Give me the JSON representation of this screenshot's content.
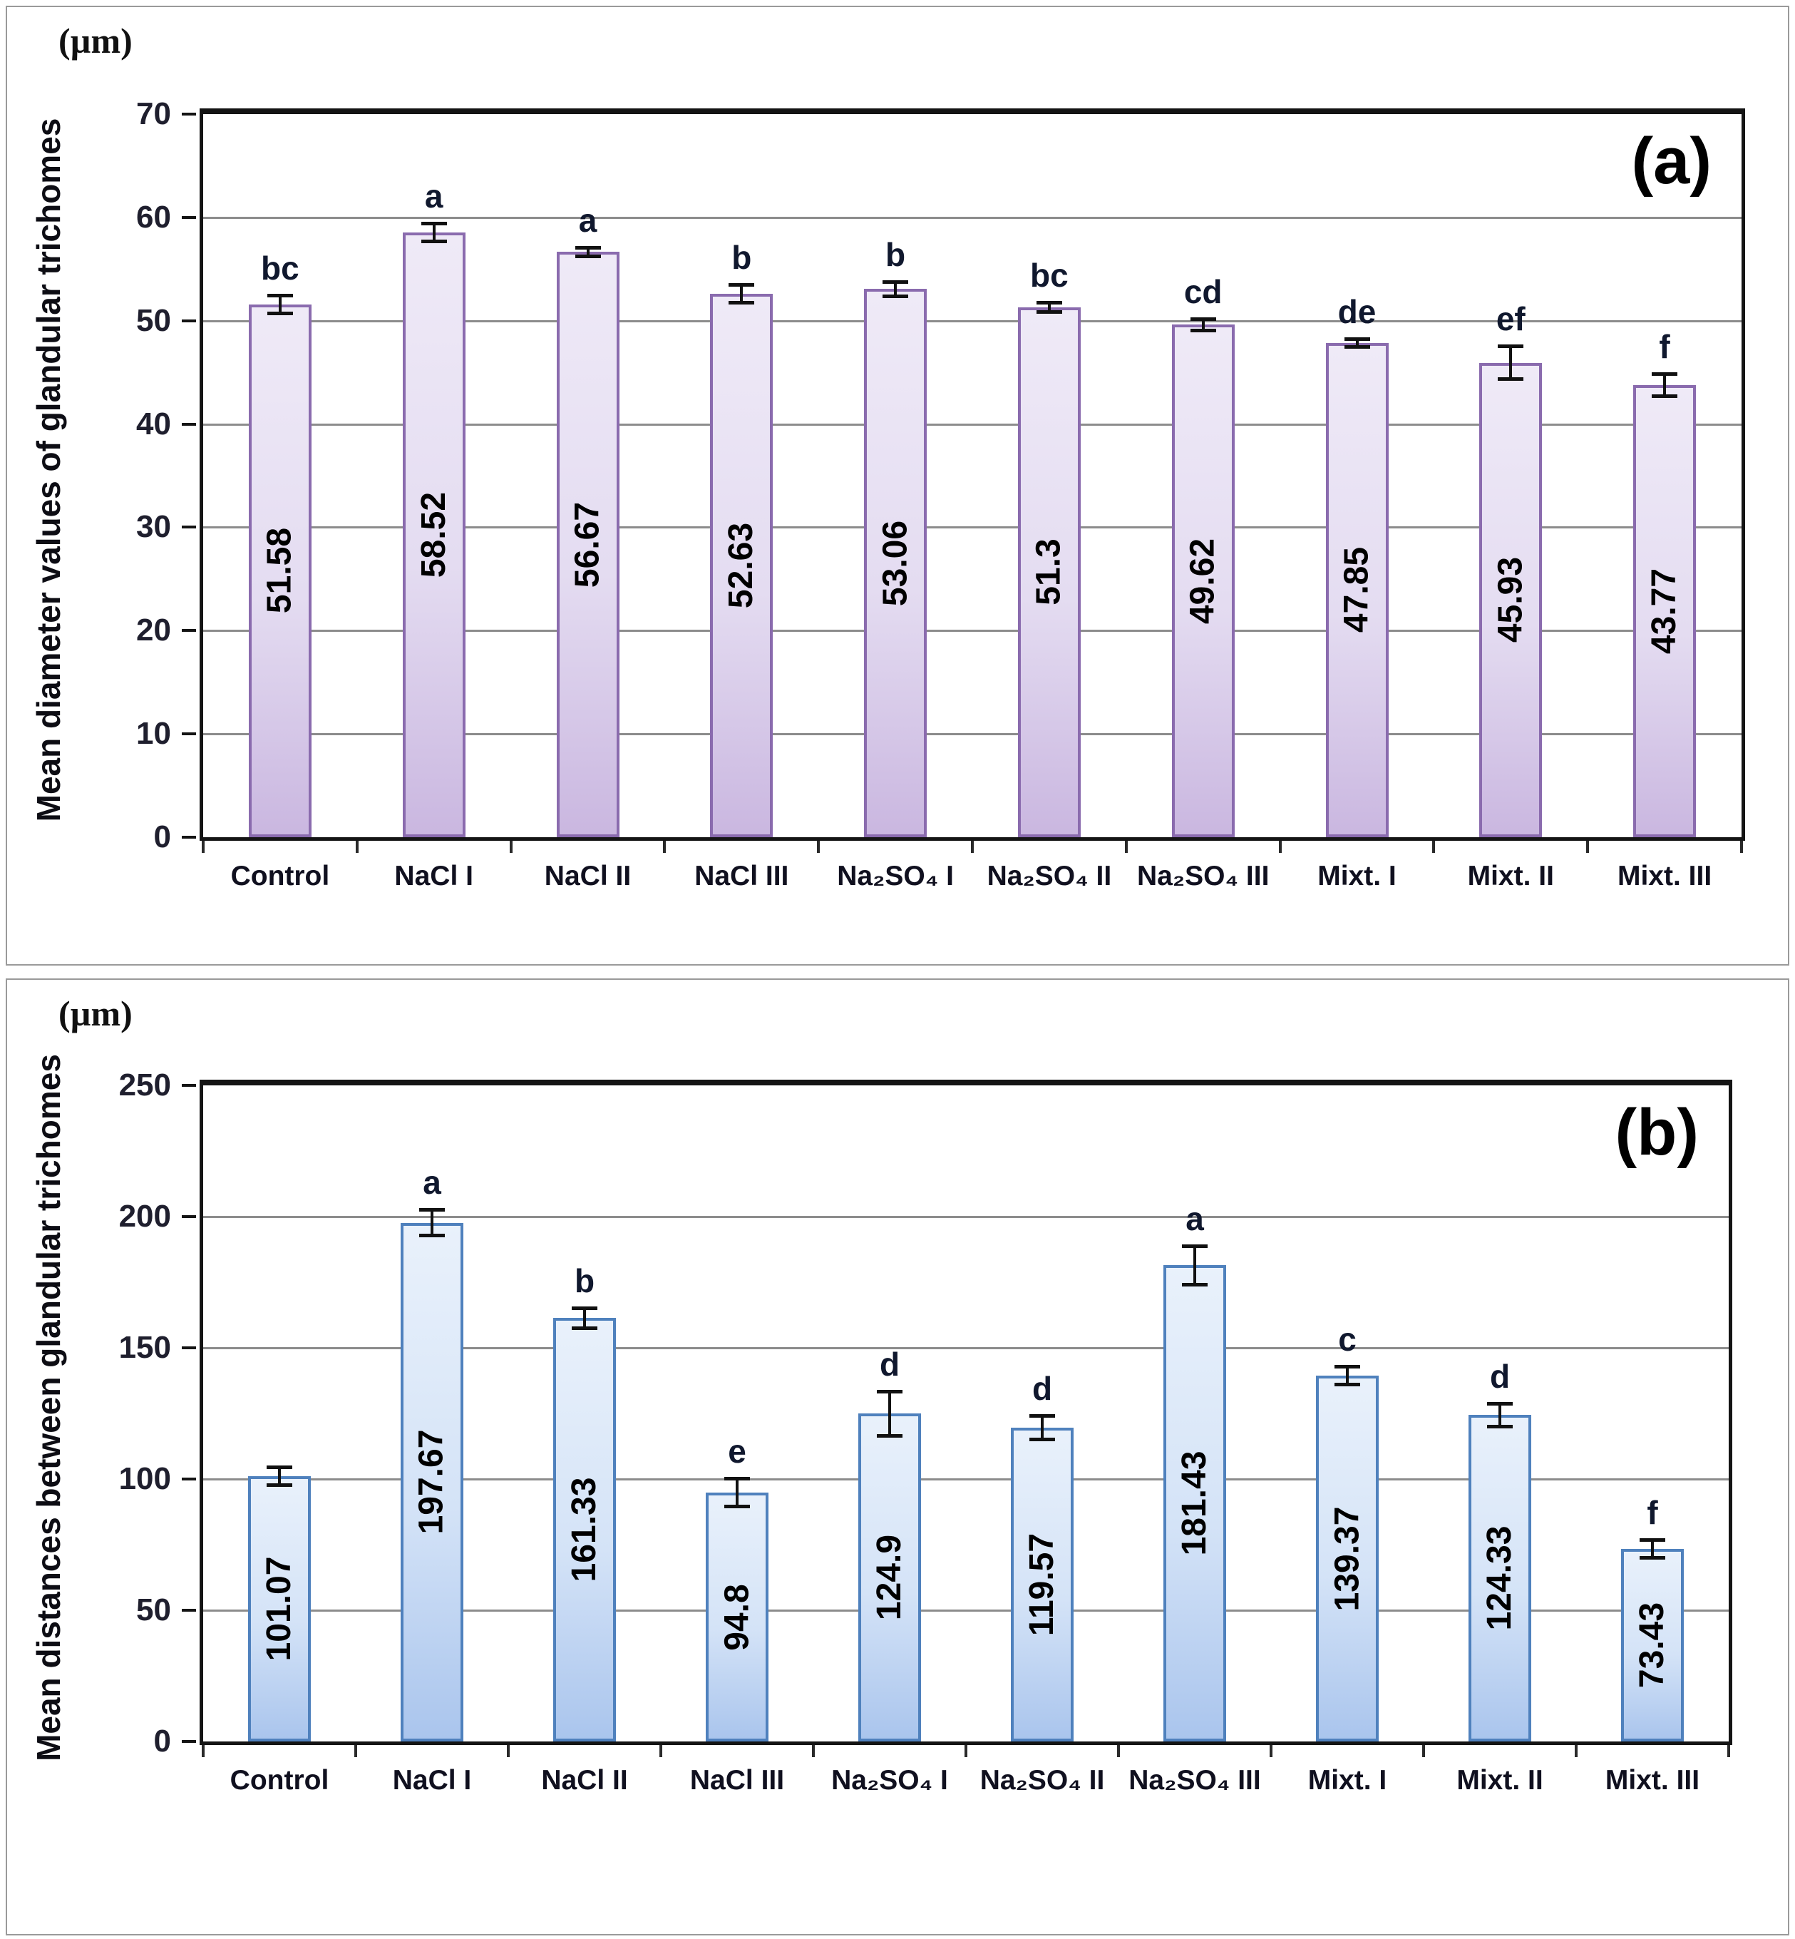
{
  "chart_data": [
    {
      "type": "bar",
      "panel_label": "(a)",
      "unit": "(µm)",
      "ylabel": "Mean diameter values of glandular trichomes",
      "categories": [
        "Control",
        "NaCl I",
        "NaCl II",
        "NaCl III",
        "Na₂SO₄ I",
        "Na₂SO₄ II",
        "Na₂SO₄ III",
        "Mixt. I",
        "Mixt. II",
        "Mixt. III"
      ],
      "values": [
        51.58,
        58.52,
        56.67,
        52.63,
        53.06,
        51.3,
        49.62,
        47.85,
        45.93,
        43.77
      ],
      "value_labels": [
        "51.58",
        "58.52",
        "56.67",
        "52.63",
        "53.06",
        "51.3",
        "49.62",
        "47.85",
        "45.93",
        "43.77"
      ],
      "errors": [
        0.9,
        0.9,
        0.45,
        0.9,
        0.7,
        0.5,
        0.6,
        0.4,
        1.6,
        1.1
      ],
      "sig_letters": [
        "bc",
        "a",
        "a",
        "b",
        "b",
        "bc",
        "cd",
        "de",
        "ef",
        "f"
      ],
      "ylim": [
        0,
        70
      ],
      "ytick_step": 10,
      "grid": true,
      "legend": false,
      "colors": {
        "bar_fill_top": "#efeaf7",
        "bar_fill_mid": "#e4dcf1",
        "bar_fill_bottom": "#cab7e0",
        "bar_border": "#8a6bae"
      }
    },
    {
      "type": "bar",
      "panel_label": "(b)",
      "unit": "(µm)",
      "ylabel": "Mean distances between glandular trichomes",
      "categories": [
        "Control",
        "NaCl I",
        "NaCl II",
        "NaCl III",
        "Na₂SO₄ I",
        "Na₂SO₄ II",
        "Na₂SO₄ III",
        "Mixt. I",
        "Mixt. II",
        "Mixt. III"
      ],
      "values": [
        101.07,
        197.67,
        161.33,
        94.8,
        124.9,
        119.57,
        181.43,
        139.37,
        124.33,
        73.43
      ],
      "value_labels": [
        "101.07",
        "197.67",
        "161.33",
        "94.8",
        "124.9",
        "119.57",
        "181.43",
        "139.37",
        "124.33",
        "73.43"
      ],
      "errors": [
        3.5,
        5,
        4,
        5.5,
        8.5,
        4.5,
        7.5,
        3.5,
        4.5,
        3.5
      ],
      "sig_letters": [
        "",
        "a",
        "b",
        "e",
        "d",
        "d",
        "a",
        "c",
        "d",
        "f"
      ],
      "ylim": [
        0,
        250
      ],
      "ytick_step": 50,
      "grid": true,
      "legend": false,
      "colors": {
        "bar_fill_top": "#e9f1fb",
        "bar_fill_mid": "#d4e3f7",
        "bar_fill_bottom": "#aac5ed",
        "bar_border": "#4f81bd"
      }
    }
  ]
}
